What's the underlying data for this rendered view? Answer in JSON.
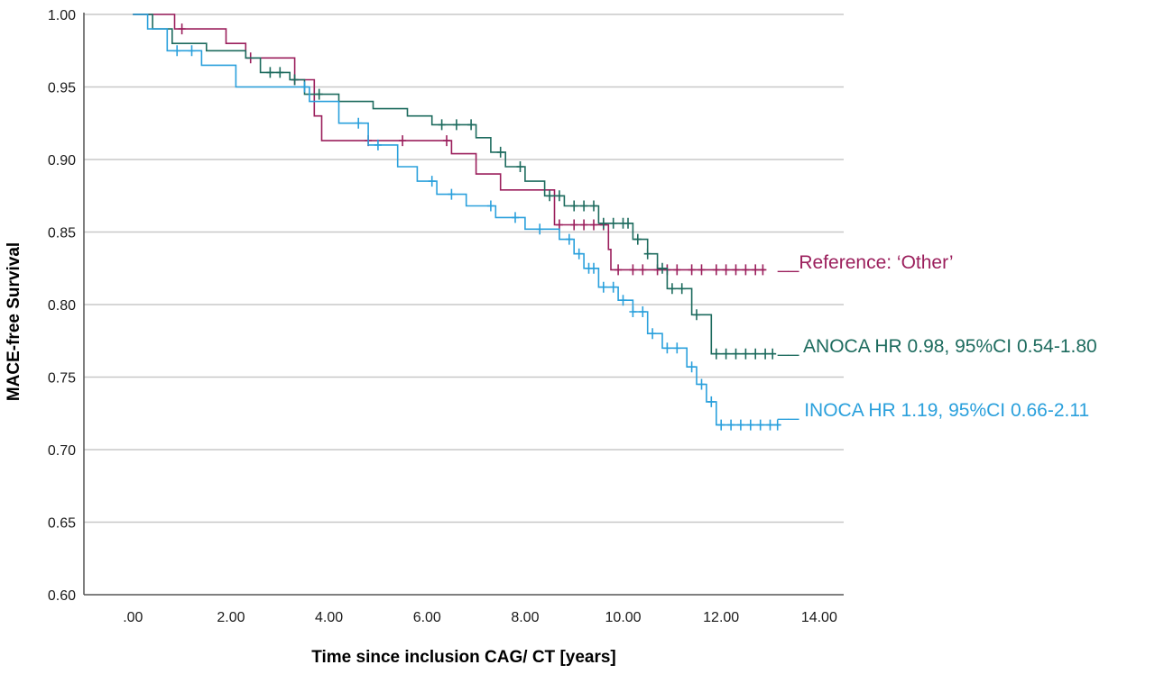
{
  "chart_data": {
    "type": "line",
    "subtype": "kaplan-meier step",
    "title": "",
    "xlabel": "Time since inclusion CAG/ CT [years]",
    "ylabel": "MACE-free Survival",
    "xlim": [
      -1,
      14.5
    ],
    "ylim": [
      0.6,
      1.0
    ],
    "x_ticks": [
      0,
      2,
      4,
      6,
      8,
      10,
      12,
      14
    ],
    "x_tick_labels": [
      ".00",
      "2.00",
      "4.00",
      "6.00",
      "8.00",
      "10.00",
      "12.00",
      "14.00"
    ],
    "y_ticks": [
      0.6,
      0.65,
      0.7,
      0.75,
      0.8,
      0.85,
      0.9,
      0.95,
      1.0
    ],
    "y_tick_labels": [
      "0.60",
      "0.65",
      "0.70",
      "0.75",
      "0.80",
      "0.85",
      "0.90",
      "0.95",
      "1.00"
    ],
    "grid": "horizontal",
    "legend_position": "right",
    "series": [
      {
        "name": "Reference: ‘Other’",
        "legend_label": "__Reference: ‘Other’",
        "color": "#9b1f5c",
        "steps": [
          [
            0,
            1.0
          ],
          [
            0.85,
            1.0
          ],
          [
            0.85,
            0.99
          ],
          [
            1.9,
            0.99
          ],
          [
            1.9,
            0.98
          ],
          [
            2.3,
            0.98
          ],
          [
            2.3,
            0.97
          ],
          [
            3.3,
            0.97
          ],
          [
            3.3,
            0.955
          ],
          [
            3.7,
            0.955
          ],
          [
            3.7,
            0.93
          ],
          [
            3.85,
            0.93
          ],
          [
            3.85,
            0.913
          ],
          [
            6.5,
            0.913
          ],
          [
            6.5,
            0.904
          ],
          [
            7.0,
            0.904
          ],
          [
            7.0,
            0.89
          ],
          [
            7.5,
            0.89
          ],
          [
            7.5,
            0.879
          ],
          [
            8.6,
            0.879
          ],
          [
            8.6,
            0.855
          ],
          [
            9.7,
            0.855
          ],
          [
            9.7,
            0.838
          ],
          [
            9.75,
            0.838
          ],
          [
            9.75,
            0.824
          ],
          [
            12.9,
            0.824
          ]
        ],
        "censor_x": [
          1.0,
          2.4,
          3.3,
          4.8,
          5.5,
          6.4,
          8.7,
          9.0,
          9.2,
          9.4,
          9.6,
          9.9,
          10.2,
          10.4,
          10.7,
          10.9,
          11.1,
          11.4,
          11.6,
          11.9,
          12.1,
          12.3,
          12.5,
          12.7,
          12.85
        ]
      },
      {
        "name": "ANOCA HR 0.98, 95%CI 0.54-1.80",
        "legend_label": "__ ANOCA HR 0.98, 95%CI 0.54-1.80",
        "color": "#1d6b5e",
        "steps": [
          [
            0,
            1.0
          ],
          [
            0.4,
            1.0
          ],
          [
            0.4,
            0.99
          ],
          [
            0.8,
            0.99
          ],
          [
            0.8,
            0.98
          ],
          [
            1.5,
            0.98
          ],
          [
            1.5,
            0.975
          ],
          [
            2.3,
            0.975
          ],
          [
            2.3,
            0.97
          ],
          [
            2.6,
            0.97
          ],
          [
            2.6,
            0.96
          ],
          [
            3.2,
            0.96
          ],
          [
            3.2,
            0.955
          ],
          [
            3.5,
            0.955
          ],
          [
            3.5,
            0.945
          ],
          [
            4.2,
            0.945
          ],
          [
            4.2,
            0.94
          ],
          [
            4.9,
            0.94
          ],
          [
            4.9,
            0.935
          ],
          [
            5.6,
            0.935
          ],
          [
            5.6,
            0.93
          ],
          [
            6.1,
            0.93
          ],
          [
            6.1,
            0.924
          ],
          [
            7.0,
            0.924
          ],
          [
            7.0,
            0.915
          ],
          [
            7.3,
            0.915
          ],
          [
            7.3,
            0.905
          ],
          [
            7.6,
            0.905
          ],
          [
            7.6,
            0.895
          ],
          [
            8.0,
            0.895
          ],
          [
            8.0,
            0.885
          ],
          [
            8.4,
            0.885
          ],
          [
            8.4,
            0.875
          ],
          [
            8.8,
            0.875
          ],
          [
            8.8,
            0.868
          ],
          [
            9.5,
            0.868
          ],
          [
            9.5,
            0.856
          ],
          [
            10.2,
            0.856
          ],
          [
            10.2,
            0.845
          ],
          [
            10.5,
            0.845
          ],
          [
            10.5,
            0.835
          ],
          [
            10.7,
            0.835
          ],
          [
            10.7,
            0.825
          ],
          [
            10.9,
            0.825
          ],
          [
            10.9,
            0.811
          ],
          [
            11.4,
            0.811
          ],
          [
            11.4,
            0.793
          ],
          [
            11.8,
            0.793
          ],
          [
            11.8,
            0.766
          ],
          [
            13.1,
            0.766
          ]
        ],
        "censor_x": [
          2.8,
          3.0,
          3.3,
          3.8,
          6.3,
          6.6,
          6.9,
          7.5,
          7.9,
          8.5,
          8.7,
          9.0,
          9.2,
          9.4,
          9.6,
          9.8,
          10.0,
          10.1,
          10.3,
          10.5,
          10.8,
          11.0,
          11.2,
          11.5,
          11.9,
          12.1,
          12.3,
          12.5,
          12.7,
          12.9,
          13.05
        ]
      },
      {
        "name": "INOCA  HR 1.19, 95%CI 0.66-2.11",
        "legend_label": "__ INOCA  HR 1.19, 95%CI 0.66-2.11",
        "color": "#2aa0dc",
        "steps": [
          [
            0,
            1.0
          ],
          [
            0.3,
            1.0
          ],
          [
            0.3,
            0.99
          ],
          [
            0.7,
            0.99
          ],
          [
            0.7,
            0.975
          ],
          [
            1.4,
            0.975
          ],
          [
            1.4,
            0.965
          ],
          [
            2.1,
            0.965
          ],
          [
            2.1,
            0.95
          ],
          [
            3.6,
            0.95
          ],
          [
            3.6,
            0.94
          ],
          [
            4.2,
            0.94
          ],
          [
            4.2,
            0.925
          ],
          [
            4.8,
            0.925
          ],
          [
            4.8,
            0.91
          ],
          [
            5.4,
            0.91
          ],
          [
            5.4,
            0.895
          ],
          [
            5.8,
            0.895
          ],
          [
            5.8,
            0.885
          ],
          [
            6.2,
            0.885
          ],
          [
            6.2,
            0.876
          ],
          [
            6.8,
            0.876
          ],
          [
            6.8,
            0.868
          ],
          [
            7.4,
            0.868
          ],
          [
            7.4,
            0.86
          ],
          [
            8.0,
            0.86
          ],
          [
            8.0,
            0.852
          ],
          [
            8.7,
            0.852
          ],
          [
            8.7,
            0.845
          ],
          [
            9.0,
            0.845
          ],
          [
            9.0,
            0.835
          ],
          [
            9.2,
            0.835
          ],
          [
            9.2,
            0.825
          ],
          [
            9.5,
            0.825
          ],
          [
            9.5,
            0.812
          ],
          [
            9.9,
            0.812
          ],
          [
            9.9,
            0.803
          ],
          [
            10.2,
            0.803
          ],
          [
            10.2,
            0.795
          ],
          [
            10.5,
            0.795
          ],
          [
            10.5,
            0.78
          ],
          [
            10.8,
            0.78
          ],
          [
            10.8,
            0.77
          ],
          [
            11.3,
            0.77
          ],
          [
            11.3,
            0.757
          ],
          [
            11.5,
            0.757
          ],
          [
            11.5,
            0.745
          ],
          [
            11.7,
            0.745
          ],
          [
            11.7,
            0.733
          ],
          [
            11.9,
            0.733
          ],
          [
            11.9,
            0.717
          ],
          [
            13.2,
            0.717
          ]
        ],
        "censor_x": [
          0.9,
          1.2,
          3.5,
          4.6,
          5.0,
          6.1,
          6.5,
          7.3,
          7.8,
          8.3,
          8.9,
          9.1,
          9.3,
          9.4,
          9.6,
          9.8,
          10.0,
          10.2,
          10.4,
          10.6,
          10.9,
          11.1,
          11.4,
          11.6,
          11.8,
          12.0,
          12.2,
          12.4,
          12.6,
          12.8,
          13.0,
          13.15
        ]
      }
    ]
  }
}
